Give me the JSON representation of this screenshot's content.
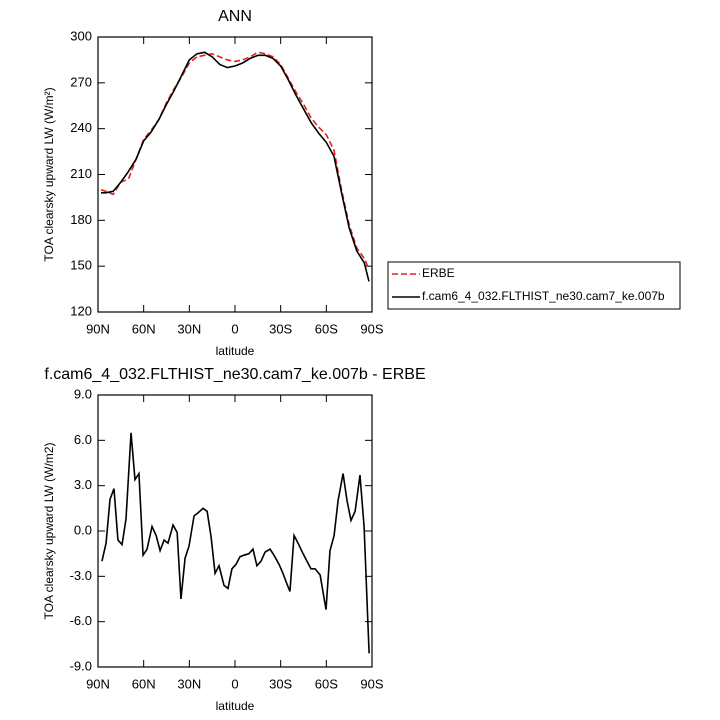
{
  "chart_data": [
    {
      "type": "line",
      "title": "ANN",
      "xlabel": "latitude",
      "ylabel": "TOA clearsky upward LW (W/m²)",
      "x": [
        88,
        85,
        80,
        75,
        70,
        65,
        60,
        55,
        50,
        45,
        40,
        35,
        30,
        25,
        20,
        15,
        10,
        5,
        0,
        -5,
        -10,
        -15,
        -20,
        -25,
        -30,
        -35,
        -40,
        -45,
        -50,
        -55,
        -60,
        -65,
        -70,
        -75,
        -80,
        -85,
        -88
      ],
      "series": [
        {
          "name": "ERBE",
          "color": "#e8201c",
          "dashed": true,
          "values": [
            200,
            199,
            197,
            205,
            207,
            220,
            233,
            239,
            246,
            257,
            266,
            274,
            283,
            287,
            288,
            289,
            287,
            285,
            284,
            285,
            287,
            290,
            289,
            287,
            282,
            273,
            264,
            256,
            247,
            241,
            236,
            226,
            200,
            177,
            162,
            155,
            148
          ]
        },
        {
          "name": "f.cam6_4_032.FLTHIST_ne30.cam7_ke.007b",
          "color": "#000000",
          "dashed": false,
          "values": [
            198,
            198,
            199,
            205,
            212,
            220,
            232,
            238,
            246,
            256,
            265,
            275,
            285,
            289,
            290,
            287,
            282,
            280,
            281,
            283,
            286,
            288,
            288,
            286,
            281,
            272,
            262,
            253,
            244,
            237,
            231,
            222,
            198,
            175,
            160,
            152,
            140
          ]
        }
      ],
      "xlim": [
        90,
        -90
      ],
      "xticks": [
        {
          "value": 90,
          "label": "90N"
        },
        {
          "value": 60,
          "label": "60N"
        },
        {
          "value": 30,
          "label": "30N"
        },
        0,
        {
          "value": -30,
          "label": "30S"
        },
        {
          "value": -60,
          "label": "60S"
        },
        {
          "value": -90,
          "label": "90S"
        }
      ],
      "ylim": [
        120,
        300
      ],
      "yticks": [
        120,
        150,
        180,
        210,
        240,
        270,
        300
      ],
      "legend": "outside-right"
    },
    {
      "type": "line",
      "title": "f.cam6_4_032.FLTHIST_ne30.cam7_ke.007b - ERBE",
      "xlabel": "latitude",
      "ylabel": "TOA clearsky upward LW (W/m2)",
      "x": [
        87.4,
        84.7,
        82.1,
        79.5,
        76.9,
        74.2,
        71.6,
        68.3,
        65.7,
        63.1,
        60.4,
        57.8,
        54.5,
        51.8,
        49.2,
        46.6,
        44.0,
        40.7,
        38.0,
        35.5,
        32.8,
        30.2,
        26.9,
        24.3,
        21.0,
        18.3,
        15.7,
        13.1,
        10.5,
        7.2,
        4.6,
        2.0,
        -0.7,
        -3.3,
        -5.9,
        -9.2,
        -11.8,
        -14.4,
        -17.1,
        -19.7,
        -23.0,
        -25.6,
        -28.9,
        -31.5,
        -34.1,
        -36.1,
        -38.8,
        -41.4,
        -44.7,
        -47.3,
        -49.9,
        -52.6,
        -55.9,
        -59.8,
        -62.4,
        -65.1,
        -67.7,
        -71.0,
        -73.6,
        -76.2,
        -78.9,
        -82.1,
        -84.8,
        -88.1
      ],
      "series": [
        {
          "color": "#000000",
          "values": [
            -2.0,
            -0.8,
            2.1,
            2.8,
            -0.6,
            -0.9,
            0.8,
            6.5,
            3.4,
            3.8,
            -1.6,
            -1.2,
            0.3,
            -0.3,
            -1.3,
            -0.6,
            -0.8,
            0.4,
            -0.1,
            -4.5,
            -1.8,
            -1.0,
            1.0,
            1.2,
            1.5,
            1.3,
            -0.4,
            -2.8,
            -2.3,
            -3.6,
            -3.8,
            -2.5,
            -2.2,
            -1.7,
            -1.6,
            -1.5,
            -1.2,
            -2.3,
            -2.0,
            -1.4,
            -1.2,
            -1.6,
            -2.2,
            -2.8,
            -3.5,
            -4.0,
            -0.3,
            -0.8,
            -1.5,
            -2.0,
            -2.5,
            -2.5,
            -2.9,
            -5.2,
            -1.3,
            -0.3,
            2.0,
            3.8,
            2.0,
            0.7,
            1.3,
            3.7,
            0.3,
            -8.1
          ]
        }
      ],
      "xlim": [
        90,
        -90
      ],
      "xticks": [
        {
          "value": 90,
          "label": "90N"
        },
        {
          "value": 60,
          "label": "60N"
        },
        {
          "value": 30,
          "label": "30N"
        },
        0,
        {
          "value": -30,
          "label": "30S"
        },
        {
          "value": -60,
          "label": "60S"
        },
        {
          "value": -90,
          "label": "90S"
        }
      ],
      "ylim": [
        -9,
        9
      ],
      "yticks": [
        {
          "value": -9,
          "label": "-9.0"
        },
        {
          "value": -6,
          "label": "-6.0"
        },
        {
          "value": -3,
          "label": "-3.0"
        },
        {
          "value": 0,
          "label": "0.0"
        },
        {
          "value": 3,
          "label": "3.0"
        },
        {
          "value": 6,
          "label": "6.0"
        },
        {
          "value": 9,
          "label": "9.0"
        }
      ]
    }
  ]
}
